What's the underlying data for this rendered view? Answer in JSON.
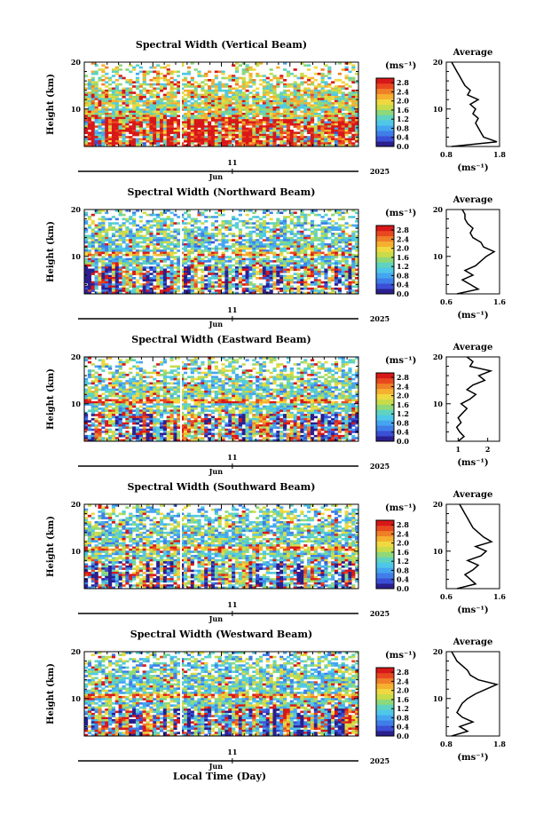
{
  "figure": {
    "xlabel": "Local Time (Day)",
    "month_label": "Jun",
    "day_label": "11",
    "year_label": "2025",
    "y_axis_label": "Height (km)",
    "avg_title": "Average",
    "unit_label": "(ms⁻¹)"
  },
  "colors": {
    "scale": [
      "#2b1f8f",
      "#3a4fd6",
      "#3f7ee8",
      "#45a5f0",
      "#4fc7e8",
      "#5fd3c0",
      "#8fd87a",
      "#c8dc4a",
      "#f0d840",
      "#f5b030",
      "#f08028",
      "#e84820",
      "#d81818"
    ],
    "no_data": "#ffffff"
  },
  "chart_data": [
    {
      "type": "heatmap",
      "title": "Spectral Width (Vertical Beam)",
      "ylabel": "Height (km)",
      "ylim": [
        2,
        20
      ],
      "yticks": [
        "10",
        "20"
      ],
      "colorbar_label": "(ms⁻¹)",
      "colorbar_ticks": [
        "0.0",
        "0.4",
        "0.8",
        "1.2",
        "1.6",
        "2.0",
        "2.4",
        "2.8"
      ],
      "colorbar_range": [
        0,
        3.0
      ],
      "x_tick_label": "11",
      "x_month": "Jun",
      "x_year": "2025",
      "average": {
        "xlim": [
          0.8,
          1.8
        ],
        "xticks": [
          "0.8",
          "1.8"
        ],
        "xlabel": "(ms⁻¹)",
        "heights": [
          2,
          3,
          4,
          5,
          6,
          7,
          8,
          9,
          10,
          11,
          12,
          13,
          14,
          15,
          16,
          17,
          18,
          19,
          20
        ],
        "values": [
          0.9,
          1.75,
          1.5,
          1.45,
          1.4,
          1.35,
          1.4,
          1.3,
          1.35,
          1.25,
          1.4,
          1.2,
          1.25,
          1.15,
          1.1,
          1.05,
          1.0,
          0.95,
          0.9
        ]
      }
    },
    {
      "type": "heatmap",
      "title": "Spectral Width (Northward Beam)",
      "ylabel": "Height (km)",
      "ylim": [
        2,
        20
      ],
      "yticks": [
        "10",
        "20"
      ],
      "colorbar_label": "(ms⁻¹)",
      "colorbar_ticks": [
        "0.0",
        "0.4",
        "0.8",
        "1.2",
        "1.6",
        "2.0",
        "2.4",
        "2.8"
      ],
      "colorbar_range": [
        0,
        3.0
      ],
      "x_tick_label": "11",
      "x_month": "Jun",
      "x_year": "2025",
      "average": {
        "xlim": [
          0.6,
          1.6
        ],
        "xticks": [
          "0.6",
          "1.6"
        ],
        "xlabel": "(ms⁻¹)",
        "heights": [
          2,
          3,
          4,
          5,
          6,
          7,
          8,
          9,
          10,
          11,
          12,
          13,
          14,
          15,
          16,
          17,
          18,
          19,
          20
        ],
        "values": [
          0.8,
          1.2,
          1.05,
          0.9,
          1.1,
          0.95,
          1.15,
          1.25,
          1.35,
          1.5,
          1.3,
          1.25,
          1.1,
          1.05,
          1.1,
          1.0,
          0.95,
          0.95,
          0.9
        ]
      }
    },
    {
      "type": "heatmap",
      "title": "Spectral Width (Eastward Beam)",
      "ylabel": "Height (km)",
      "ylim": [
        2,
        20
      ],
      "yticks": [
        "10",
        "20"
      ],
      "colorbar_label": "(ms⁻¹)",
      "colorbar_ticks": [
        "0.0",
        "0.4",
        "0.8",
        "1.2",
        "1.6",
        "2.0",
        "2.4",
        "2.8"
      ],
      "colorbar_range": [
        0,
        3.0
      ],
      "x_tick_label": "11",
      "x_month": "Jun",
      "x_year": "2025",
      "average": {
        "xlim": [
          0.6,
          2.4
        ],
        "xticks": [
          "1",
          "2"
        ],
        "xlabel": "(ms⁻¹)",
        "heights": [
          2,
          3,
          4,
          5,
          6,
          7,
          8,
          9,
          10,
          11,
          12,
          13,
          14,
          15,
          16,
          17,
          18,
          19,
          20
        ],
        "values": [
          1.0,
          1.2,
          1.05,
          0.95,
          1.1,
          1.0,
          1.15,
          1.3,
          1.1,
          1.4,
          1.6,
          1.3,
          1.5,
          1.9,
          1.7,
          2.1,
          1.4,
          1.5,
          1.3
        ]
      }
    },
    {
      "type": "heatmap",
      "title": "Spectral Width (Southward Beam)",
      "ylabel": "Height (km)",
      "ylim": [
        2,
        20
      ],
      "yticks": [
        "10",
        "20"
      ],
      "colorbar_label": "(ms⁻¹)",
      "colorbar_ticks": [
        "0.0",
        "0.4",
        "0.8",
        "1.2",
        "1.6",
        "2.0",
        "2.4",
        "2.8"
      ],
      "colorbar_range": [
        0,
        3.0
      ],
      "x_tick_label": "11",
      "x_month": "Jun",
      "x_year": "2025",
      "average": {
        "xlim": [
          0.6,
          1.6
        ],
        "xticks": [
          "0.6",
          "1.6"
        ],
        "xlabel": "(ms⁻¹)",
        "heights": [
          2,
          3,
          4,
          5,
          6,
          7,
          8,
          9,
          10,
          11,
          12,
          13,
          14,
          15,
          16,
          17,
          18,
          19,
          20
        ],
        "values": [
          0.8,
          1.15,
          1.05,
          0.95,
          1.1,
          1.2,
          1.0,
          1.25,
          1.35,
          1.15,
          1.45,
          1.3,
          1.2,
          1.1,
          1.05,
          1.0,
          0.95,
          0.9,
          0.85
        ]
      }
    },
    {
      "type": "heatmap",
      "title": "Spectral Width (Westward Beam)",
      "ylabel": "Height (km)",
      "ylim": [
        2,
        20
      ],
      "yticks": [
        "10",
        "20"
      ],
      "colorbar_label": "(ms⁻¹)",
      "colorbar_ticks": [
        "0.0",
        "0.4",
        "0.8",
        "1.2",
        "1.6",
        "2.0",
        "2.4",
        "2.8"
      ],
      "colorbar_range": [
        0,
        3.0
      ],
      "x_tick_label": "11",
      "x_month": "Jun",
      "x_year": "2025",
      "average": {
        "xlim": [
          0.8,
          1.8
        ],
        "xticks": [
          "0.8",
          "1.8"
        ],
        "xlabel": "(ms⁻¹)",
        "heights": [
          2,
          3,
          4,
          5,
          6,
          7,
          8,
          9,
          10,
          11,
          12,
          13,
          14,
          15,
          16,
          17,
          18,
          19,
          20
        ],
        "values": [
          0.9,
          1.2,
          1.05,
          1.3,
          1.1,
          1.0,
          1.05,
          1.1,
          1.2,
          1.35,
          1.55,
          1.75,
          1.4,
          1.25,
          1.2,
          1.1,
          1.0,
          0.95,
          0.9
        ]
      }
    }
  ]
}
